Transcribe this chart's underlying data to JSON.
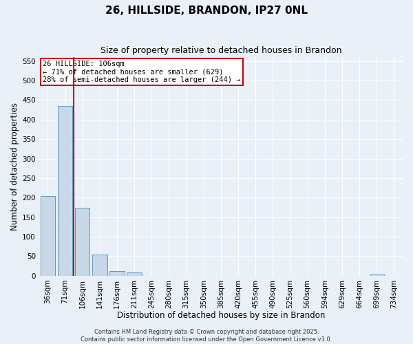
{
  "title": "26, HILLSIDE, BRANDON, IP27 0NL",
  "subtitle": "Size of property relative to detached houses in Brandon",
  "xlabel": "Distribution of detached houses by size in Brandon",
  "ylabel": "Number of detached properties",
  "categories": [
    "36sqm",
    "71sqm",
    "106sqm",
    "141sqm",
    "176sqm",
    "211sqm",
    "245sqm",
    "280sqm",
    "315sqm",
    "350sqm",
    "385sqm",
    "420sqm",
    "455sqm",
    "490sqm",
    "525sqm",
    "560sqm",
    "594sqm",
    "629sqm",
    "664sqm",
    "699sqm",
    "734sqm"
  ],
  "values": [
    205,
    435,
    175,
    55,
    12,
    8,
    0,
    0,
    0,
    0,
    0,
    0,
    0,
    0,
    0,
    0,
    0,
    0,
    0,
    4,
    0
  ],
  "bar_color": "#c8d8e8",
  "bar_edge_color": "#5a9abf",
  "highlight_index": 2,
  "highlight_color": "#cc0000",
  "ylim": [
    0,
    560
  ],
  "yticks": [
    0,
    50,
    100,
    150,
    200,
    250,
    300,
    350,
    400,
    450,
    500,
    550
  ],
  "annotation_text": "26 HILLSIDE: 106sqm\n← 71% of detached houses are smaller (629)\n28% of semi-detached houses are larger (244) →",
  "annotation_box_color": "#cc0000",
  "footer_line1": "Contains HM Land Registry data © Crown copyright and database right 2025.",
  "footer_line2": "Contains public sector information licensed under the Open Government Licence v3.0.",
  "background_color": "#eaf0f8",
  "grid_color": "#d0d8e8",
  "title_fontsize": 11,
  "subtitle_fontsize": 9,
  "axis_label_fontsize": 8.5,
  "tick_fontsize": 7.5,
  "footer_fontsize": 6
}
